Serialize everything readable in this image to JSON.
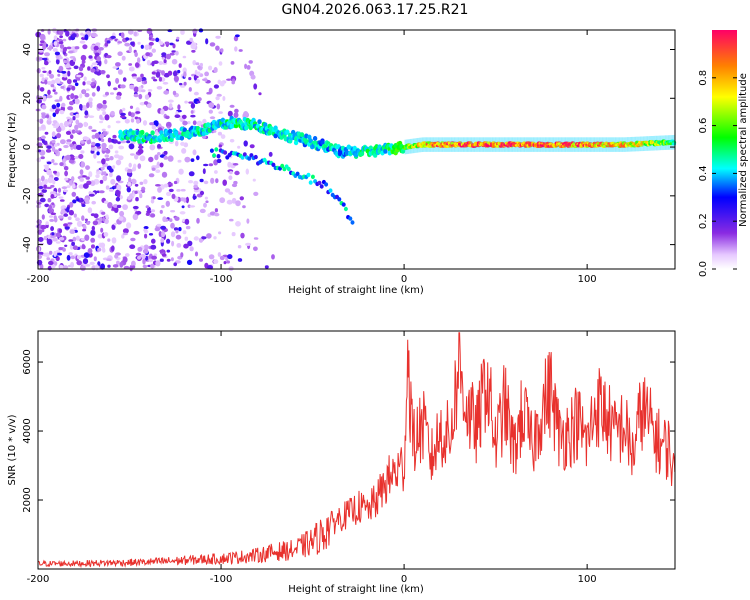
{
  "title": "GN04.2026.063.17.25.R21",
  "chart_data": [
    {
      "type": "heatmap",
      "xlabel": "Height of straight line (km)",
      "ylabel": "Frequency (Hz)",
      "xlim": [
        -200,
        148
      ],
      "ylim": [
        -50,
        48
      ],
      "xticks": [
        -200,
        -100,
        0,
        100
      ],
      "yticks": [
        -40,
        -20,
        0,
        20,
        40
      ],
      "tick_labels_x": [
        "-200",
        "-100",
        "0",
        "100"
      ],
      "tick_labels_y": [
        "-40",
        "-20",
        "0",
        "20",
        "40"
      ],
      "colorbar": {
        "label": "Normalized spectral amplitude",
        "range": [
          0,
          1
        ],
        "ticks": [
          0.0,
          0.2,
          0.4,
          0.6,
          0.8
        ],
        "tick_labels": [
          "0.0",
          "0.2",
          "0.4",
          "0.6",
          "0.8"
        ]
      },
      "ridge": [
        {
          "x": -155,
          "y": 5,
          "amp": 0.45
        },
        {
          "x": -140,
          "y": 4,
          "amp": 0.5
        },
        {
          "x": -125,
          "y": 5,
          "amp": 0.45
        },
        {
          "x": -110,
          "y": 7,
          "amp": 0.5
        },
        {
          "x": -95,
          "y": 10,
          "amp": 0.5
        },
        {
          "x": -80,
          "y": 9,
          "amp": 0.5
        },
        {
          "x": -65,
          "y": 5,
          "amp": 0.45
        },
        {
          "x": -50,
          "y": 2,
          "amp": 0.45
        },
        {
          "x": -35,
          "y": -2,
          "amp": 0.45
        },
        {
          "x": -20,
          "y": -2,
          "amp": 0.5
        },
        {
          "x": -10,
          "y": -1,
          "amp": 0.5
        },
        {
          "x": 0,
          "y": 0,
          "amp": 0.6
        },
        {
          "x": 10,
          "y": 1,
          "amp": 0.85
        },
        {
          "x": 30,
          "y": 1,
          "amp": 0.95
        },
        {
          "x": 60,
          "y": 1,
          "amp": 1.0
        },
        {
          "x": 90,
          "y": 1,
          "amp": 0.95
        },
        {
          "x": 120,
          "y": 1,
          "amp": 0.85
        },
        {
          "x": 148,
          "y": 2,
          "amp": 0.6
        }
      ],
      "lower_branch": [
        {
          "x": -105,
          "y": -2
        },
        {
          "x": -85,
          "y": -4
        },
        {
          "x": -65,
          "y": -9
        },
        {
          "x": -45,
          "y": -15
        },
        {
          "x": -35,
          "y": -22
        },
        {
          "x": -28,
          "y": -32
        }
      ]
    },
    {
      "type": "line",
      "xlabel": "Height of straight line (km)",
      "ylabel": "SNR (10 * v/v)",
      "xlim": [
        -200,
        148
      ],
      "ylim": [
        0,
        6900
      ],
      "xticks": [
        -200,
        -100,
        0,
        100
      ],
      "yticks": [
        2000,
        4000,
        6000
      ],
      "tick_labels_x": [
        "-200",
        "-100",
        "0",
        "100"
      ],
      "tick_labels_y": [
        "2000",
        "4000",
        "6000"
      ],
      "color": "#e8312d",
      "series": [
        {
          "name": "SNR",
          "x": [
            -200,
            -180,
            -160,
            -140,
            -120,
            -100,
            -90,
            -80,
            -70,
            -60,
            -50,
            -45,
            -40,
            -35,
            -30,
            -25,
            -20,
            -15,
            -10,
            -5,
            0,
            2,
            5,
            10,
            15,
            20,
            25,
            30,
            35,
            40,
            45,
            50,
            55,
            60,
            65,
            70,
            75,
            80,
            85,
            90,
            95,
            100,
            105,
            110,
            115,
            120,
            125,
            130,
            135,
            140,
            145,
            148
          ],
          "values": [
            150,
            160,
            180,
            200,
            250,
            300,
            350,
            400,
            500,
            550,
            800,
            1000,
            1300,
            1500,
            1600,
            1800,
            1700,
            2000,
            2500,
            2800,
            3000,
            6200,
            3600,
            4200,
            3200,
            4000,
            3800,
            5900,
            4500,
            4000,
            5600,
            3600,
            4800,
            3400,
            4600,
            3500,
            4600,
            5200,
            3800,
            4000,
            4300,
            3600,
            4800,
            4500,
            3900,
            4200,
            3300,
            4700,
            4100,
            3600,
            3500,
            2500
          ]
        }
      ]
    }
  ]
}
